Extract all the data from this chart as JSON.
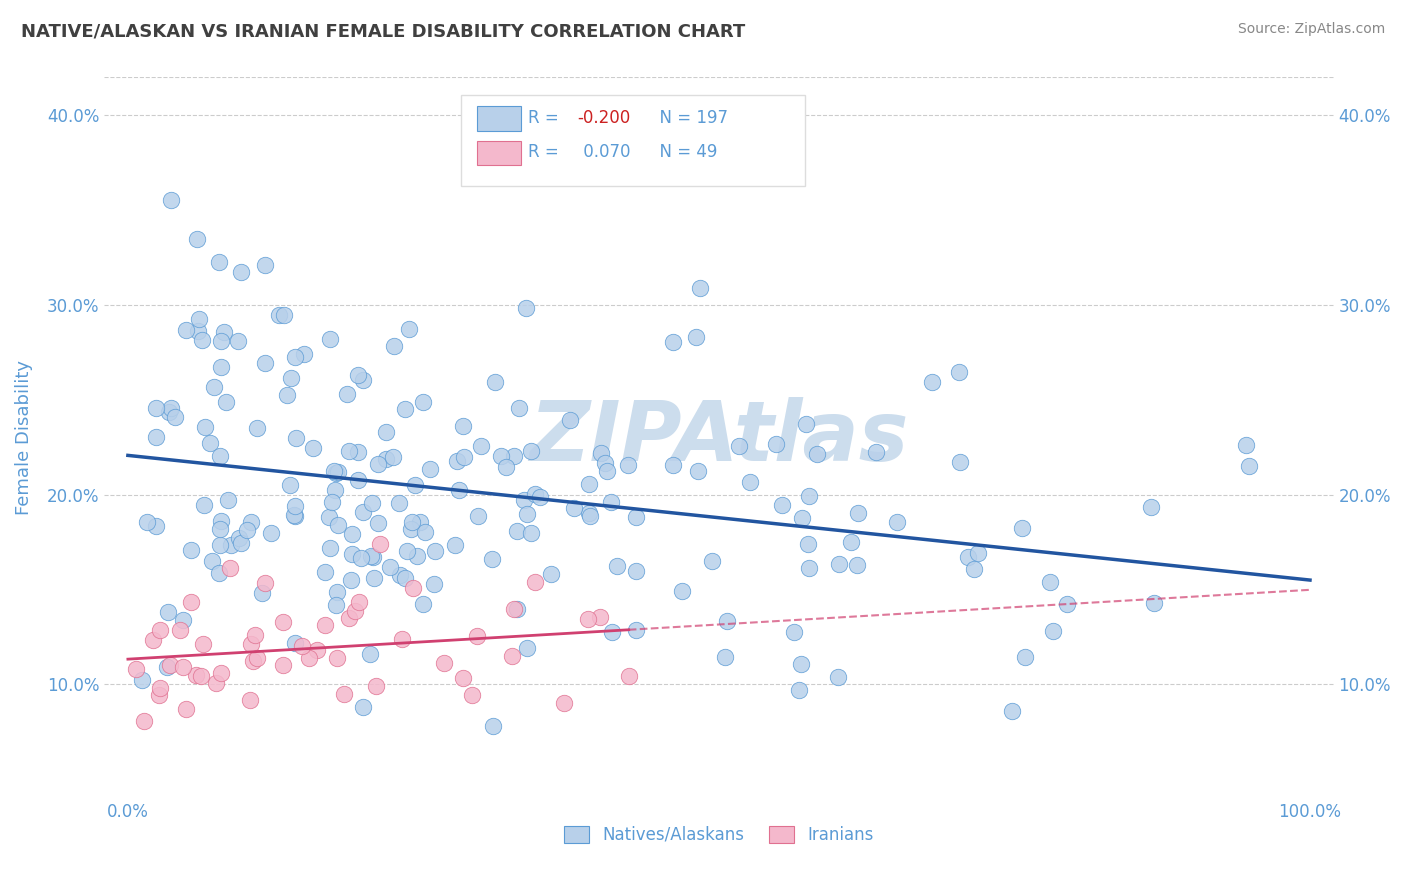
{
  "title": "NATIVE/ALASKAN VS IRANIAN FEMALE DISABILITY CORRELATION CHART",
  "source": "Source: ZipAtlas.com",
  "ylabel": "Female Disability",
  "xlim": [
    -0.02,
    1.02
  ],
  "ylim": [
    0.04,
    0.42
  ],
  "xticks": [
    0.0,
    1.0
  ],
  "xticklabels": [
    "0.0%",
    "100.0%"
  ],
  "yticks": [
    0.1,
    0.2,
    0.3,
    0.4
  ],
  "yticklabels": [
    "10.0%",
    "20.0%",
    "30.0%",
    "40.0%"
  ],
  "blue_R": -0.2,
  "blue_N": 197,
  "pink_R": 0.07,
  "pink_N": 49,
  "blue_color": "#b8d0ea",
  "blue_edge_color": "#5b9bd5",
  "blue_line_color": "#2255a0",
  "pink_color": "#f4b8cc",
  "pink_edge_color": "#e07090",
  "pink_line_color": "#d04070",
  "watermark": "ZIPAtlas",
  "watermark_color": "#ccdded",
  "background_color": "#ffffff",
  "grid_color": "#cccccc",
  "title_color": "#404040",
  "tick_label_color": "#5b9bd5",
  "legend_R_color": "#5b9bd5",
  "source_color": "#888888"
}
